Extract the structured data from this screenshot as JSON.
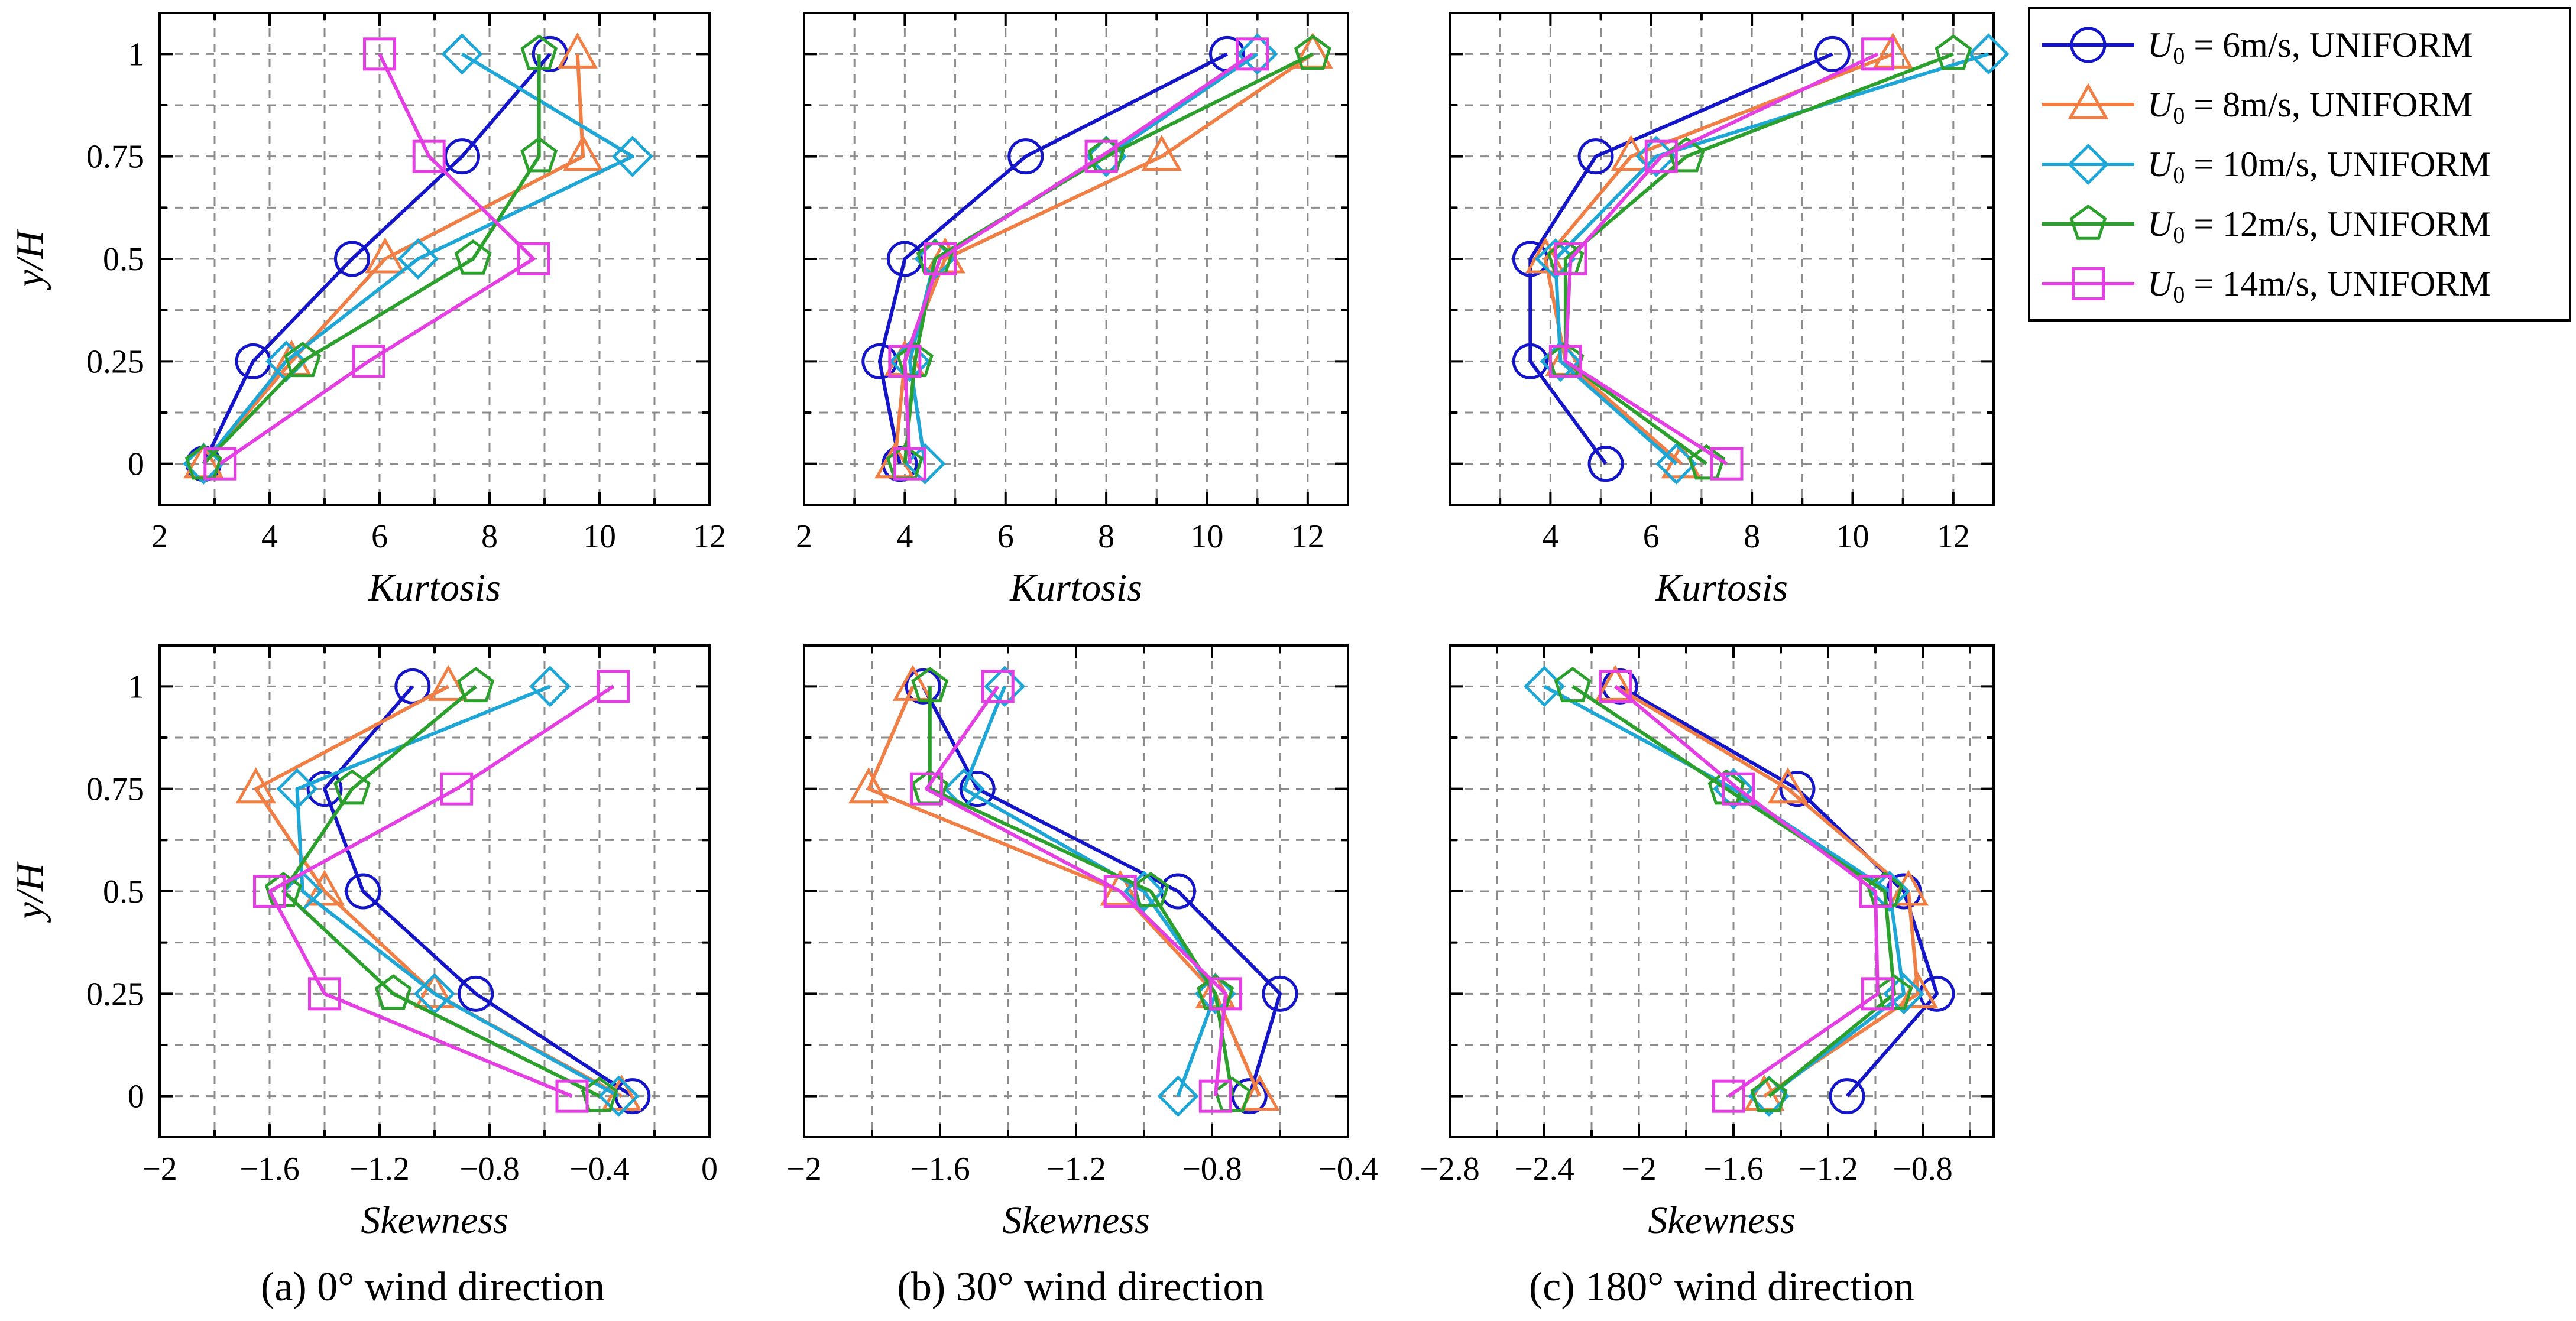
{
  "colors": {
    "6": "#1414c8",
    "8": "#f07f45",
    "10": "#1ea6d6",
    "12": "#2ca02c",
    "14": "#e33fe3"
  },
  "legend": {
    "prefix": "U",
    "subscript": "0",
    "entries": [
      {
        "key": "6",
        "marker": "circle",
        "label": " = 6m/s, UNIFORM"
      },
      {
        "key": "8",
        "marker": "triangle",
        "label": " = 8m/s, UNIFORM"
      },
      {
        "key": "10",
        "marker": "diamond",
        "label": " = 10m/s, UNIFORM"
      },
      {
        "key": "12",
        "marker": "pentagon",
        "label": " = 12m/s, UNIFORM"
      },
      {
        "key": "14",
        "marker": "square",
        "label": " = 14m/s, UNIFORM"
      }
    ]
  },
  "captions": [
    "(a) 0° wind direction",
    "(b) 30° wind direction",
    "(c) 180° wind direction"
  ],
  "chart_data": [
    {
      "type": "line",
      "panel": "kurtosis-0deg",
      "xlabel": "Kurtosis",
      "ylabel": "y/H",
      "xlim": [
        2,
        12
      ],
      "xticks": [
        2,
        4,
        6,
        8,
        10,
        12
      ],
      "xtick_labels": [
        "2",
        "4",
        "6",
        "8",
        "10",
        "12"
      ],
      "ylim": [
        -0.1,
        1.1
      ],
      "yticks": [
        0,
        0.25,
        0.5,
        0.75,
        1
      ],
      "ytick_labels": [
        "0",
        "0.25",
        "0.5",
        "0.75",
        "1"
      ],
      "y": [
        0,
        0.25,
        0.5,
        0.75,
        1
      ],
      "series": [
        {
          "name": "U0 = 6m/s, UNIFORM",
          "key": "6",
          "values": [
            2.8,
            3.7,
            5.5,
            7.5,
            9.1
          ]
        },
        {
          "name": "U0 = 8m/s, UNIFORM",
          "key": "8",
          "values": [
            2.8,
            4.4,
            6.1,
            9.7,
            9.6
          ]
        },
        {
          "name": "U0 = 10m/s, UNIFORM",
          "key": "10",
          "values": [
            2.8,
            4.3,
            6.7,
            10.6,
            7.5
          ]
        },
        {
          "name": "U0 = 12m/s, UNIFORM",
          "key": "12",
          "values": [
            2.8,
            4.6,
            7.7,
            8.9,
            8.9
          ]
        },
        {
          "name": "U0 = 14m/s, UNIFORM",
          "key": "14",
          "values": [
            3.1,
            5.8,
            8.8,
            6.9,
            6.0
          ]
        }
      ]
    },
    {
      "type": "line",
      "panel": "kurtosis-30deg",
      "xlabel": "Kurtosis",
      "ylabel": "",
      "xlim": [
        2,
        12.8
      ],
      "xticks": [
        2,
        4,
        6,
        8,
        10,
        12
      ],
      "xtick_labels": [
        "2",
        "4",
        "6",
        "8",
        "10",
        "12"
      ],
      "ylim": [
        -0.1,
        1.1
      ],
      "yticks": [
        0,
        0.25,
        0.5,
        0.75,
        1
      ],
      "ytick_labels": [],
      "y": [
        0,
        0.25,
        0.5,
        0.75,
        1
      ],
      "series": [
        {
          "name": "U0 = 6m/s, UNIFORM",
          "key": "6",
          "values": [
            3.9,
            3.5,
            4.0,
            6.4,
            10.4
          ]
        },
        {
          "name": "U0 = 8m/s, UNIFORM",
          "key": "8",
          "values": [
            3.8,
            4.0,
            4.8,
            9.1,
            12.1
          ]
        },
        {
          "name": "U0 = 10m/s, UNIFORM",
          "key": "10",
          "values": [
            4.4,
            4.1,
            4.6,
            8.0,
            11.0
          ]
        },
        {
          "name": "U0 = 12m/s, UNIFORM",
          "key": "12",
          "values": [
            4.0,
            4.2,
            4.6,
            8.0,
            12.1
          ]
        },
        {
          "name": "U0 = 14m/s, UNIFORM",
          "key": "14",
          "values": [
            4.1,
            4.0,
            4.7,
            7.9,
            10.9
          ]
        }
      ]
    },
    {
      "type": "line",
      "panel": "kurtosis-180deg",
      "xlabel": "Kurtosis",
      "ylabel": "",
      "xlim": [
        2,
        12.8
      ],
      "xticks": [
        4,
        6,
        8,
        10,
        12
      ],
      "xtick_labels": [
        "4",
        "6",
        "8",
        "10",
        "12"
      ],
      "ylim": [
        -0.1,
        1.1
      ],
      "yticks": [
        0,
        0.25,
        0.5,
        0.75,
        1
      ],
      "ytick_labels": [],
      "y": [
        0,
        0.25,
        0.5,
        0.75,
        1
      ],
      "series": [
        {
          "name": "U0 = 6m/s, UNIFORM",
          "key": "6",
          "values": [
            5.1,
            3.6,
            3.6,
            4.9,
            9.6
          ]
        },
        {
          "name": "U0 = 8m/s, UNIFORM",
          "key": "8",
          "values": [
            6.6,
            4.3,
            3.9,
            5.6,
            10.8
          ]
        },
        {
          "name": "U0 = 10m/s, UNIFORM",
          "key": "10",
          "values": [
            6.5,
            4.2,
            4.1,
            6.1,
            12.7
          ]
        },
        {
          "name": "U0 = 12m/s, UNIFORM",
          "key": "12",
          "values": [
            7.1,
            4.3,
            4.3,
            6.7,
            12.0
          ]
        },
        {
          "name": "U0 = 14m/s, UNIFORM",
          "key": "14",
          "values": [
            7.5,
            4.3,
            4.4,
            6.2,
            10.5
          ]
        }
      ]
    },
    {
      "type": "line",
      "panel": "skewness-0deg",
      "xlabel": "Skewness",
      "ylabel": "y/H",
      "xlim": [
        -2,
        0
      ],
      "xticks": [
        -2,
        -1.6,
        -1.2,
        -0.8,
        -0.4,
        0
      ],
      "xtick_labels": [
        "−2",
        "−1.6",
        "−1.2",
        "−0.8",
        "−0.4",
        "0"
      ],
      "ylim": [
        -0.1,
        1.1
      ],
      "yticks": [
        0,
        0.25,
        0.5,
        0.75,
        1
      ],
      "ytick_labels": [
        "0",
        "0.25",
        "0.5",
        "0.75",
        "1"
      ],
      "y": [
        0,
        0.25,
        0.5,
        0.75,
        1
      ],
      "series": [
        {
          "name": "U0 = 6m/s, UNIFORM",
          "key": "6",
          "values": [
            -0.28,
            -0.85,
            -1.26,
            -1.4,
            -1.08
          ]
        },
        {
          "name": "U0 = 8m/s, UNIFORM",
          "key": "8",
          "values": [
            -0.32,
            -1.0,
            -1.4,
            -1.65,
            -0.95
          ]
        },
        {
          "name": "U0 = 10m/s, UNIFORM",
          "key": "10",
          "values": [
            -0.33,
            -1.0,
            -1.48,
            -1.5,
            -0.58
          ]
        },
        {
          "name": "U0 = 12m/s, UNIFORM",
          "key": "12",
          "values": [
            -0.4,
            -1.15,
            -1.55,
            -1.3,
            -0.85
          ]
        },
        {
          "name": "U0 = 14m/s, UNIFORM",
          "key": "14",
          "values": [
            -0.5,
            -1.4,
            -1.6,
            -0.92,
            -0.35
          ]
        }
      ]
    },
    {
      "type": "line",
      "panel": "skewness-30deg",
      "xlabel": "Skewness",
      "ylabel": "",
      "xlim": [
        -2,
        -0.4
      ],
      "xticks": [
        -2,
        -1.6,
        -1.2,
        -0.8,
        -0.4
      ],
      "xtick_labels": [
        "−2",
        "−1.6",
        "−1.2",
        "−0.8",
        "−0.4"
      ],
      "ylim": [
        -0.1,
        1.1
      ],
      "yticks": [
        0,
        0.25,
        0.5,
        0.75,
        1
      ],
      "ytick_labels": [],
      "y": [
        0,
        0.25,
        0.5,
        0.75,
        1
      ],
      "series": [
        {
          "name": "U0 = 6m/s, UNIFORM",
          "key": "6",
          "values": [
            -0.69,
            -0.6,
            -0.9,
            -1.49,
            -1.65
          ]
        },
        {
          "name": "U0 = 8m/s, UNIFORM",
          "key": "8",
          "values": [
            -0.66,
            -0.79,
            -1.07,
            -1.81,
            -1.68
          ]
        },
        {
          "name": "U0 = 10m/s, UNIFORM",
          "key": "10",
          "values": [
            -0.9,
            -0.79,
            -1.0,
            -1.53,
            -1.41
          ]
        },
        {
          "name": "U0 = 12m/s, UNIFORM",
          "key": "12",
          "values": [
            -0.74,
            -0.79,
            -0.98,
            -1.63,
            -1.63
          ]
        },
        {
          "name": "U0 = 14m/s, UNIFORM",
          "key": "14",
          "values": [
            -0.79,
            -0.76,
            -1.07,
            -1.64,
            -1.43
          ]
        }
      ]
    },
    {
      "type": "line",
      "panel": "skewness-180deg",
      "xlabel": "Skewness",
      "ylabel": "",
      "xlim": [
        -2.8,
        -0.5
      ],
      "xticks": [
        -2.8,
        -2.4,
        -2,
        -1.6,
        -1.2,
        -0.8
      ],
      "xtick_labels": [
        "−2.8",
        "−2.4",
        "−2",
        "−1.6",
        "−1.2",
        "−0.8"
      ],
      "ylim": [
        -0.1,
        1.1
      ],
      "yticks": [
        0,
        0.25,
        0.5,
        0.75,
        1
      ],
      "ytick_labels": [],
      "y": [
        0,
        0.25,
        0.5,
        0.75,
        1
      ],
      "series": [
        {
          "name": "U0 = 6m/s, UNIFORM",
          "key": "6",
          "values": [
            -1.12,
            -0.74,
            -0.88,
            -1.33,
            -2.08
          ]
        },
        {
          "name": "U0 = 8m/s, UNIFORM",
          "key": "8",
          "values": [
            -1.47,
            -0.82,
            -0.86,
            -1.37,
            -2.1
          ]
        },
        {
          "name": "U0 = 10m/s, UNIFORM",
          "key": "10",
          "values": [
            -1.45,
            -0.88,
            -0.94,
            -1.6,
            -2.4
          ]
        },
        {
          "name": "U0 = 12m/s, UNIFORM",
          "key": "12",
          "values": [
            -1.45,
            -0.92,
            -0.96,
            -1.63,
            -2.28
          ]
        },
        {
          "name": "U0 = 14m/s, UNIFORM",
          "key": "14",
          "values": [
            -1.62,
            -0.99,
            -1.0,
            -1.58,
            -2.1
          ]
        }
      ]
    }
  ]
}
